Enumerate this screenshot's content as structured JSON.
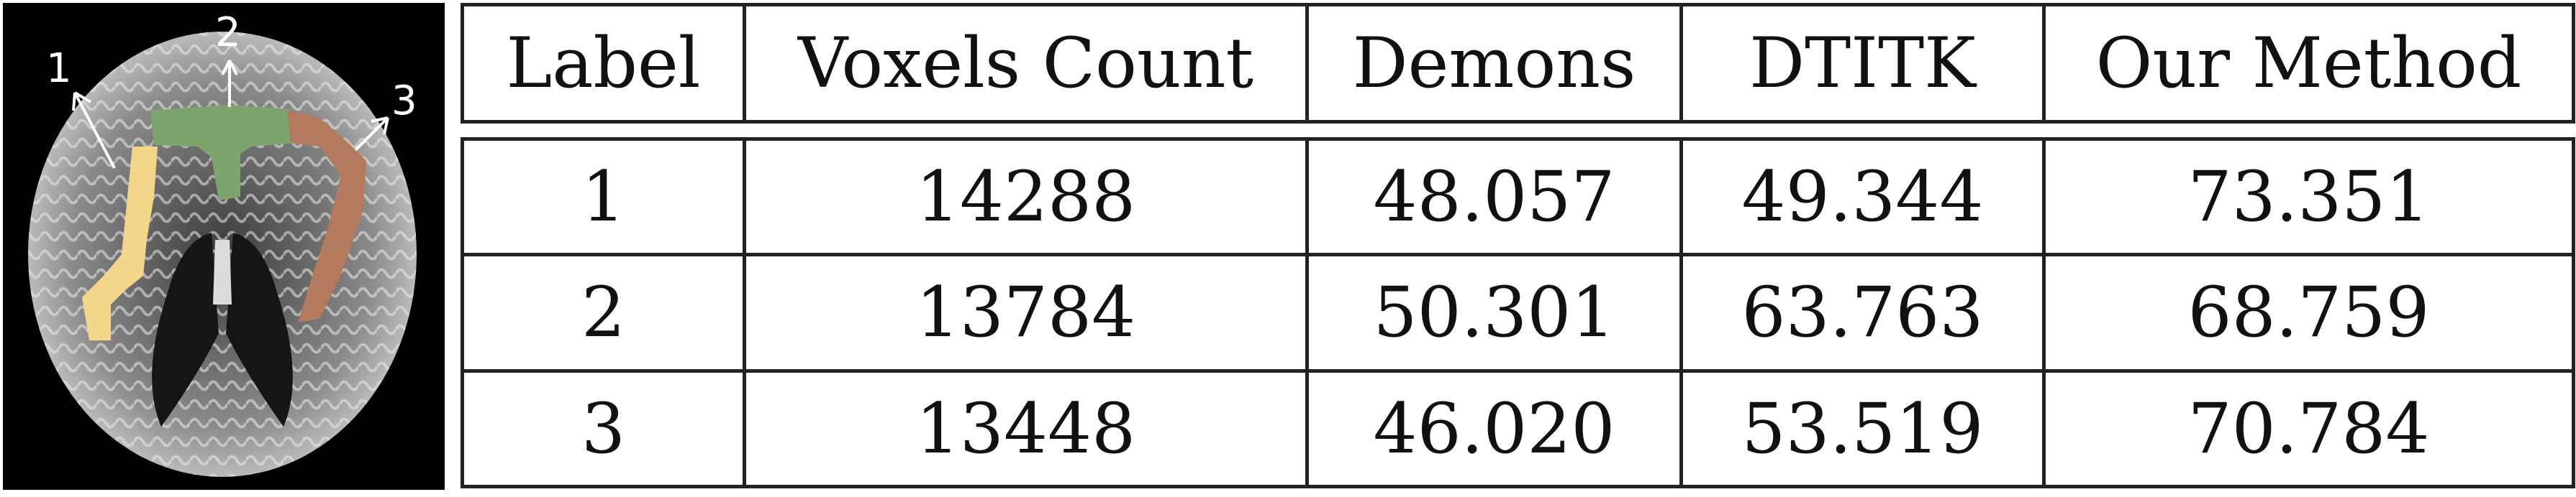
{
  "figure": {
    "callouts": [
      "1",
      "2",
      "3"
    ],
    "region_colors": {
      "region1": "#f4d68a",
      "region2": "#7ea46e",
      "region3": "#b47a5e"
    }
  },
  "table": {
    "headers": [
      "Label",
      "Voxels Count",
      "Demons",
      "DTITK",
      "Our Method"
    ],
    "rows": [
      [
        "1",
        "14288",
        "48.057",
        "49.344",
        "73.351"
      ],
      [
        "2",
        "13784",
        "50.301",
        "63.763",
        "68.759"
      ],
      [
        "3",
        "13448",
        "46.020",
        "53.519",
        "70.784"
      ]
    ]
  }
}
